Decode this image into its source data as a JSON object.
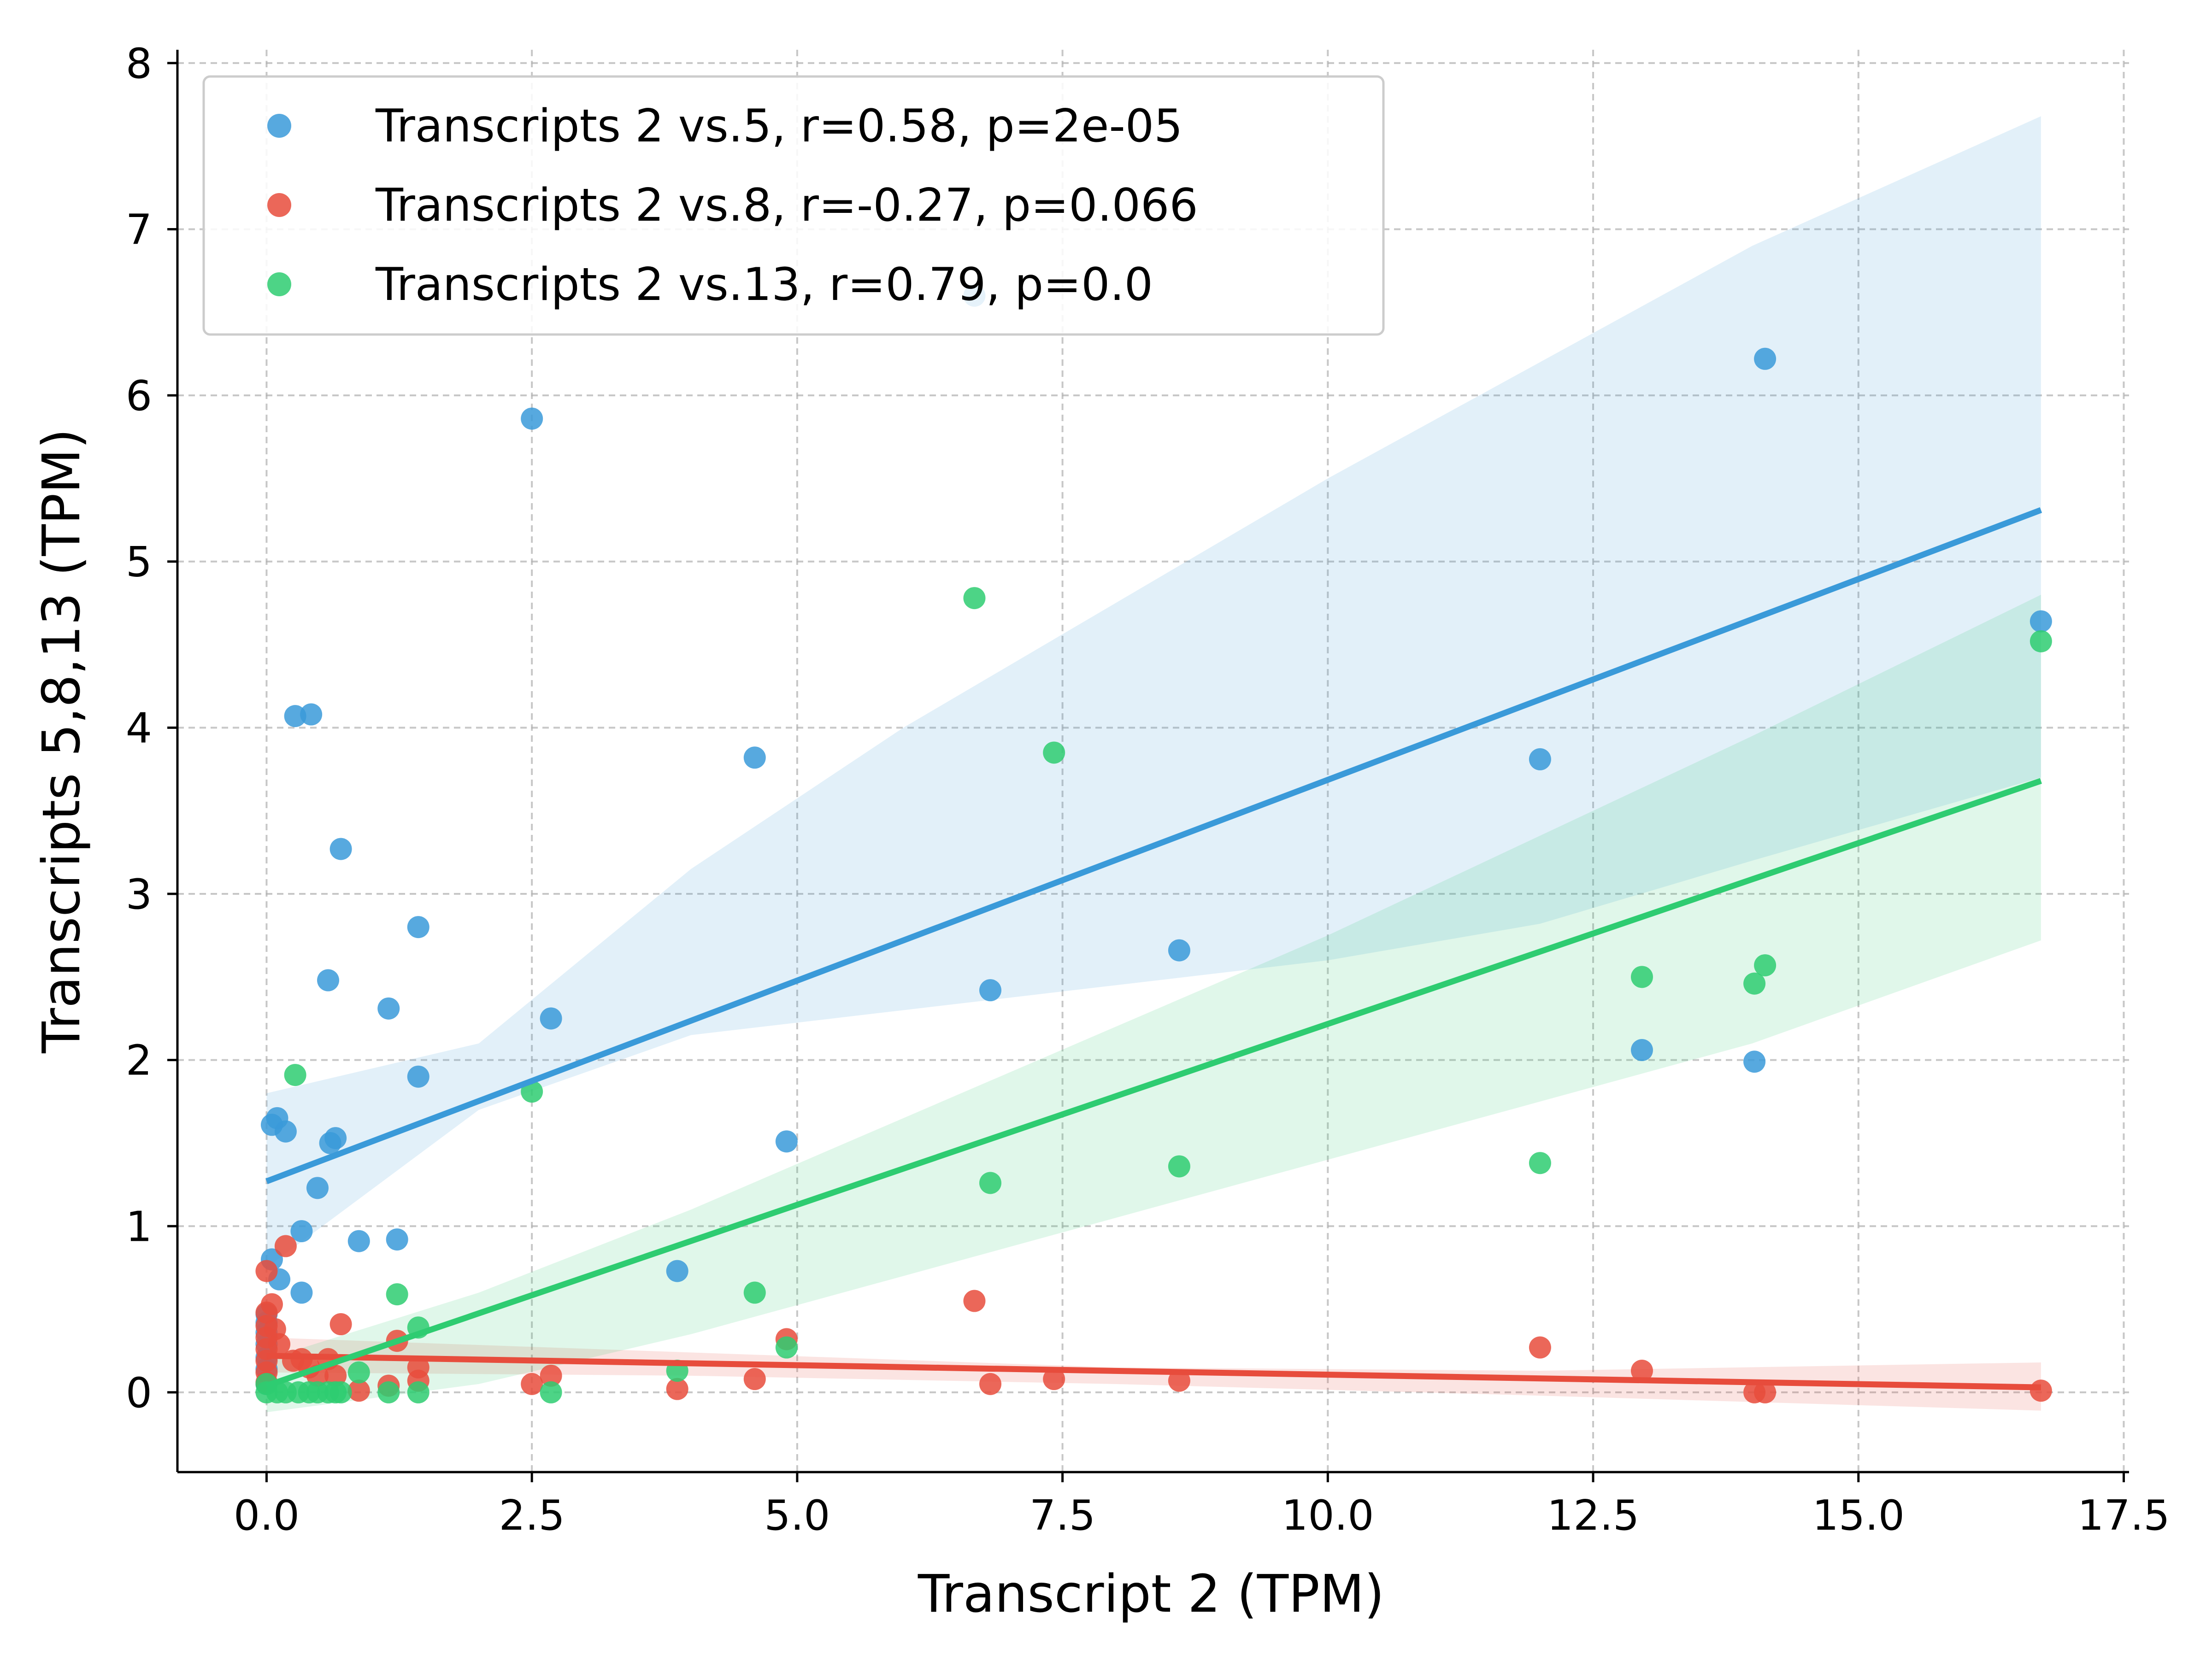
{
  "chart_data": {
    "type": "scatter",
    "title": "",
    "xlabel": "Transcript 2 (TPM)",
    "ylabel": "Transcripts 5,8,13 (TPM)",
    "xlim": [
      -0.84,
      17.55
    ],
    "ylim": [
      -0.48,
      8.08
    ],
    "xticks": [
      0.0,
      2.5,
      5.0,
      7.5,
      10.0,
      12.5,
      15.0,
      17.5
    ],
    "xtick_labels": [
      "0.0",
      "2.5",
      "5.0",
      "7.5",
      "10.0",
      "12.5",
      "15.0",
      "17.5"
    ],
    "yticks": [
      0,
      1,
      2,
      3,
      4,
      5,
      6,
      7,
      8
    ],
    "ytick_labels": [
      "0",
      "1",
      "2",
      "3",
      "4",
      "5",
      "6",
      "7",
      "8"
    ],
    "grid": true,
    "legend_position": "top-left",
    "series": [
      {
        "name": "Transcripts 2 vs.5, r=0.58, p=2e-05",
        "color": "#3a9ad9",
        "points": [
          [
            0.0,
            0.47
          ],
          [
            0.0,
            0.42
          ],
          [
            0.0,
            0.36
          ],
          [
            0.0,
            0.29
          ],
          [
            0.0,
            0.21
          ],
          [
            0.0,
            0.14
          ],
          [
            0.0,
            0.05
          ],
          [
            0.05,
            1.61
          ],
          [
            0.05,
            0.8
          ],
          [
            0.1,
            1.65
          ],
          [
            0.12,
            0.68
          ],
          [
            0.18,
            1.57
          ],
          [
            0.27,
            4.07
          ],
          [
            0.33,
            0.97
          ],
          [
            0.33,
            0.6
          ],
          [
            0.42,
            4.08
          ],
          [
            0.48,
            1.23
          ],
          [
            0.58,
            2.48
          ],
          [
            0.6,
            1.5
          ],
          [
            0.65,
            1.53
          ],
          [
            0.7,
            3.27
          ],
          [
            0.87,
            0.91
          ],
          [
            1.15,
            2.31
          ],
          [
            1.23,
            0.92
          ],
          [
            1.43,
            2.8
          ],
          [
            1.43,
            1.9
          ],
          [
            2.5,
            5.86
          ],
          [
            2.68,
            2.25
          ],
          [
            3.87,
            0.73
          ],
          [
            4.6,
            3.82
          ],
          [
            4.9,
            1.51
          ],
          [
            6.67,
            6.6
          ],
          [
            6.82,
            2.42
          ],
          [
            8.6,
            2.66
          ],
          [
            12.0,
            3.81
          ],
          [
            12.96,
            2.06
          ],
          [
            14.02,
            1.99
          ],
          [
            14.12,
            6.22
          ],
          [
            16.72,
            4.64
          ]
        ],
        "fit": {
          "x": [
            0.0,
            16.72
          ],
          "y": [
            1.27,
            5.31
          ]
        },
        "ci_lower": [
          [
            0.0,
            0.75
          ],
          [
            2.0,
            1.7
          ],
          [
            4.0,
            2.15
          ],
          [
            6.0,
            2.3
          ],
          [
            8.0,
            2.45
          ],
          [
            10.0,
            2.6
          ],
          [
            12.0,
            2.82
          ],
          [
            14.0,
            3.2
          ],
          [
            16.72,
            3.7
          ]
        ],
        "ci_upper": [
          [
            0.0,
            1.8
          ],
          [
            2.0,
            2.1
          ],
          [
            4.0,
            3.15
          ],
          [
            6.0,
            4.0
          ],
          [
            8.0,
            4.75
          ],
          [
            10.0,
            5.5
          ],
          [
            12.0,
            6.2
          ],
          [
            14.0,
            6.9
          ],
          [
            16.72,
            7.68
          ]
        ]
      },
      {
        "name": "Transcripts 2 vs.8, r=-0.27, p=0.066",
        "color": "#e74c3c",
        "points": [
          [
            0.0,
            0.73
          ],
          [
            0.0,
            0.48
          ],
          [
            0.0,
            0.4
          ],
          [
            0.0,
            0.33
          ],
          [
            0.0,
            0.26
          ],
          [
            0.0,
            0.19
          ],
          [
            0.0,
            0.12
          ],
          [
            0.0,
            0.06
          ],
          [
            0.05,
            0.53
          ],
          [
            0.08,
            0.38
          ],
          [
            0.12,
            0.29
          ],
          [
            0.18,
            0.88
          ],
          [
            0.25,
            0.19
          ],
          [
            0.33,
            0.2
          ],
          [
            0.4,
            0.15
          ],
          [
            0.48,
            0.1
          ],
          [
            0.58,
            0.2
          ],
          [
            0.65,
            0.1
          ],
          [
            0.7,
            0.41
          ],
          [
            0.87,
            0.01
          ],
          [
            1.15,
            0.04
          ],
          [
            1.23,
            0.31
          ],
          [
            1.43,
            0.15
          ],
          [
            1.43,
            0.07
          ],
          [
            2.5,
            0.05
          ],
          [
            2.68,
            0.1
          ],
          [
            3.87,
            0.02
          ],
          [
            4.6,
            0.08
          ],
          [
            4.9,
            0.32
          ],
          [
            6.67,
            0.55
          ],
          [
            6.82,
            0.05
          ],
          [
            7.42,
            0.08
          ],
          [
            8.6,
            0.07
          ],
          [
            12.0,
            0.27
          ],
          [
            12.96,
            0.13
          ],
          [
            14.02,
            0.0
          ],
          [
            14.12,
            0.0
          ],
          [
            16.72,
            0.01
          ]
        ],
        "fit": {
          "x": [
            0.0,
            16.72
          ],
          "y": [
            0.22,
            0.03
          ]
        },
        "ci_lower": [
          [
            0.0,
            0.12
          ],
          [
            4.0,
            0.1
          ],
          [
            8.0,
            0.05
          ],
          [
            12.0,
            -0.02
          ],
          [
            16.72,
            -0.11
          ]
        ],
        "ci_upper": [
          [
            0.0,
            0.33
          ],
          [
            4.0,
            0.24
          ],
          [
            8.0,
            0.15
          ],
          [
            12.0,
            0.13
          ],
          [
            16.72,
            0.18
          ]
        ]
      },
      {
        "name": "Transcripts 2 vs.13, r=0.79, p=0.0",
        "color": "#2ecc71",
        "points": [
          [
            0.0,
            0.05
          ],
          [
            0.0,
            0.0
          ],
          [
            0.1,
            0.0
          ],
          [
            0.18,
            0.0
          ],
          [
            0.27,
            1.91
          ],
          [
            0.3,
            0.0
          ],
          [
            0.4,
            0.0
          ],
          [
            0.48,
            0.0
          ],
          [
            0.58,
            0.0
          ],
          [
            0.65,
            0.0
          ],
          [
            0.7,
            0.0
          ],
          [
            0.87,
            0.12
          ],
          [
            1.15,
            0.0
          ],
          [
            1.23,
            0.59
          ],
          [
            1.43,
            0.39
          ],
          [
            1.43,
            0.0
          ],
          [
            2.5,
            1.81
          ],
          [
            2.68,
            0.0
          ],
          [
            3.87,
            0.13
          ],
          [
            4.6,
            0.6
          ],
          [
            4.9,
            0.27
          ],
          [
            6.67,
            4.78
          ],
          [
            6.82,
            1.26
          ],
          [
            7.42,
            3.85
          ],
          [
            8.6,
            1.36
          ],
          [
            12.0,
            1.38
          ],
          [
            12.96,
            2.5
          ],
          [
            14.02,
            2.46
          ],
          [
            14.12,
            2.57
          ],
          [
            16.72,
            4.52
          ]
        ],
        "fit": {
          "x": [
            0.0,
            16.72
          ],
          "y": [
            0.04,
            3.68
          ]
        },
        "ci_lower": [
          [
            0.0,
            -0.12
          ],
          [
            2.0,
            0.05
          ],
          [
            4.0,
            0.35
          ],
          [
            6.0,
            0.7
          ],
          [
            8.0,
            1.05
          ],
          [
            10.0,
            1.4
          ],
          [
            12.0,
            1.75
          ],
          [
            14.0,
            2.1
          ],
          [
            16.72,
            2.72
          ]
        ],
        "ci_upper": [
          [
            0.0,
            0.2
          ],
          [
            2.0,
            0.6
          ],
          [
            4.0,
            1.1
          ],
          [
            6.0,
            1.65
          ],
          [
            8.0,
            2.2
          ],
          [
            10.0,
            2.75
          ],
          [
            12.0,
            3.35
          ],
          [
            14.0,
            3.95
          ],
          [
            16.72,
            4.8
          ]
        ]
      }
    ]
  }
}
